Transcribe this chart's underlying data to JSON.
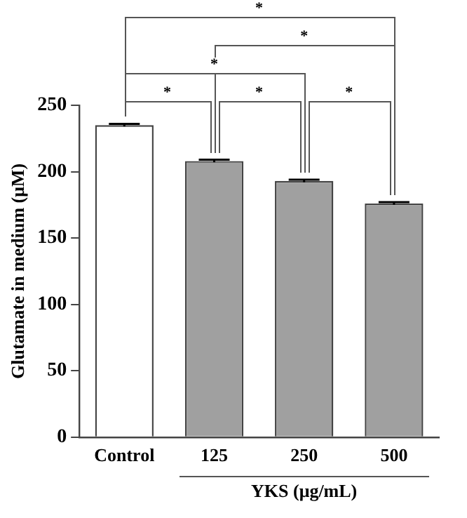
{
  "chart_data": {
    "type": "bar",
    "ylabel": "Glutamate in medium (μM)",
    "xlabel": "YKS (μg/mL)",
    "categories": [
      "Control",
      "125",
      "250",
      "500"
    ],
    "values": [
      235,
      208,
      193,
      176
    ],
    "colors": [
      "#ffffff",
      "#a0a0a0",
      "#a0a0a0",
      "#a0a0a0"
    ],
    "errors": [
      1,
      1,
      1,
      1
    ],
    "ylim": [
      0,
      250
    ],
    "yticks": [
      0,
      50,
      100,
      150,
      200,
      250
    ],
    "grid": false,
    "legend": false,
    "annotations": [
      "*",
      "*",
      "*",
      "*",
      "*",
      "*"
    ]
  }
}
